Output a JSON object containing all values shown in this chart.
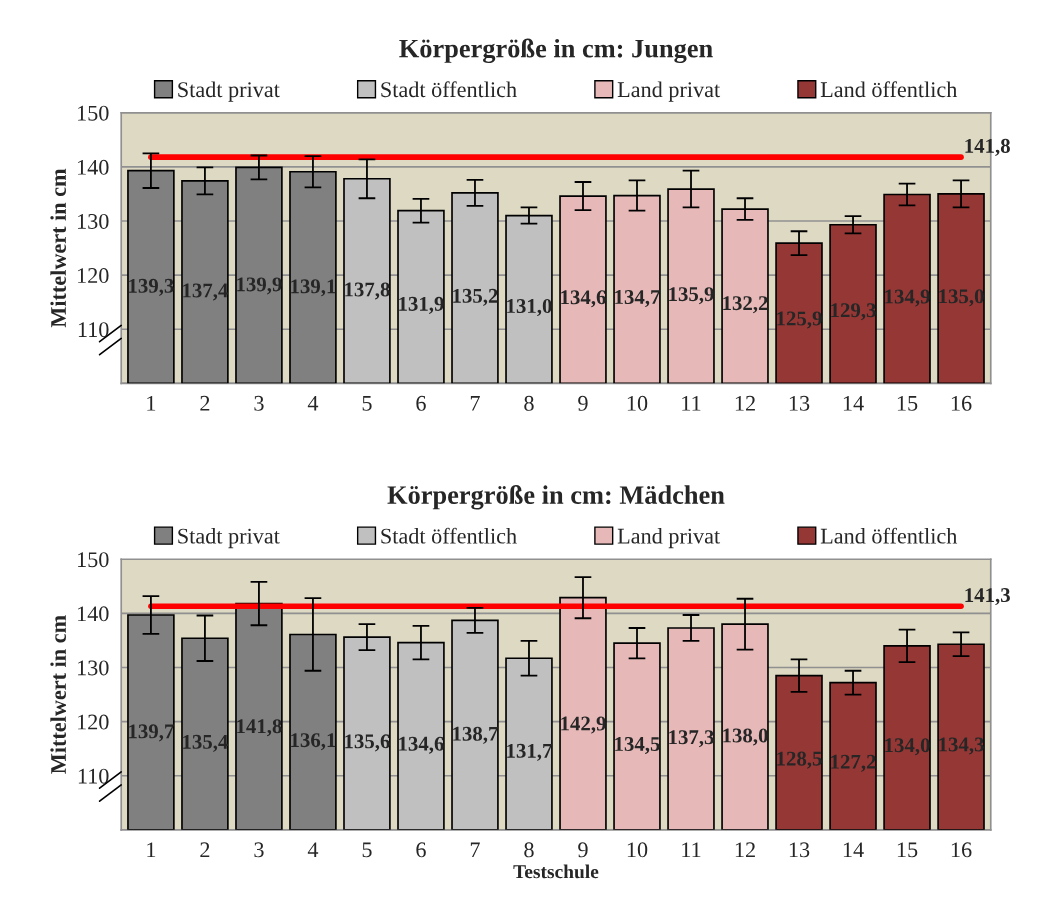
{
  "chart_data": [
    {
      "type": "bar",
      "title": "Körpergröße in cm: Jungen",
      "ylabel": "Mittelwert in cm",
      "categories": [
        "1",
        "2",
        "3",
        "4",
        "5",
        "6",
        "7",
        "8",
        "9",
        "10",
        "11",
        "12",
        "13",
        "14",
        "15",
        "16"
      ],
      "series": [
        {
          "name": "Stadt privat",
          "color": "#808080",
          "values": [
            139.3,
            137.4,
            139.9,
            139.1,
            null,
            null,
            null,
            null,
            null,
            null,
            null,
            null,
            null,
            null,
            null,
            null
          ],
          "errors": [
            3.2,
            2.5,
            2.2,
            2.9,
            null,
            null,
            null,
            null,
            null,
            null,
            null,
            null,
            null,
            null,
            null,
            null
          ],
          "value_labels": [
            "139,3",
            "137,4",
            "139,9",
            "139,1",
            null,
            null,
            null,
            null,
            null,
            null,
            null,
            null,
            null,
            null,
            null,
            null
          ]
        },
        {
          "name": "Stadt öffentlich",
          "color": "#c0c0c0",
          "values": [
            null,
            null,
            null,
            null,
            137.8,
            131.9,
            135.2,
            131.0,
            null,
            null,
            null,
            null,
            null,
            null,
            null,
            null
          ],
          "errors": [
            null,
            null,
            null,
            null,
            3.6,
            2.2,
            2.4,
            1.5,
            null,
            null,
            null,
            null,
            null,
            null,
            null,
            null
          ],
          "value_labels": [
            null,
            null,
            null,
            null,
            "137,8",
            "131,9",
            "135,2",
            "131,0",
            null,
            null,
            null,
            null,
            null,
            null,
            null,
            null
          ]
        },
        {
          "name": "Land privat",
          "color": "#e6b9b8",
          "values": [
            null,
            null,
            null,
            null,
            null,
            null,
            null,
            null,
            134.6,
            134.7,
            135.9,
            132.2,
            null,
            null,
            null,
            null
          ],
          "errors": [
            null,
            null,
            null,
            null,
            null,
            null,
            null,
            null,
            2.6,
            2.8,
            3.4,
            2.0,
            null,
            null,
            null,
            null
          ],
          "value_labels": [
            null,
            null,
            null,
            null,
            null,
            null,
            null,
            null,
            "134,6",
            "134,7",
            "135,9",
            "132,2",
            null,
            null,
            null,
            null
          ]
        },
        {
          "name": "Land öffentlich",
          "color": "#953735",
          "values": [
            null,
            null,
            null,
            null,
            null,
            null,
            null,
            null,
            null,
            null,
            null,
            null,
            125.9,
            129.3,
            134.9,
            135.0
          ],
          "errors": [
            null,
            null,
            null,
            null,
            null,
            null,
            null,
            null,
            null,
            null,
            null,
            null,
            2.2,
            1.6,
            2.0,
            2.5
          ],
          "value_labels": [
            null,
            null,
            null,
            null,
            null,
            null,
            null,
            null,
            null,
            null,
            null,
            null,
            "125,9",
            "129,3",
            "134,9",
            "135,0"
          ]
        }
      ],
      "ylim": [
        100,
        150
      ],
      "yticks": [
        {
          "value": 100,
          "label": null
        },
        110,
        120,
        130,
        140,
        150
      ],
      "ref_lines": [
        {
          "axis": "y",
          "value": 141.8,
          "label": "141,8",
          "color": "#ff0000"
        }
      ],
      "grid": "y",
      "legend": "top"
    },
    {
      "type": "bar",
      "title": "Körpergröße in cm: Mädchen",
      "ylabel": "Mittelwert in cm",
      "xlabel": "Testschule",
      "categories": [
        "1",
        "2",
        "3",
        "4",
        "5",
        "6",
        "7",
        "8",
        "9",
        "10",
        "11",
        "12",
        "13",
        "14",
        "15",
        "16"
      ],
      "series": [
        {
          "name": "Stadt privat",
          "color": "#808080",
          "values": [
            139.7,
            135.4,
            141.8,
            136.1,
            null,
            null,
            null,
            null,
            null,
            null,
            null,
            null,
            null,
            null,
            null,
            null
          ],
          "errors": [
            3.5,
            4.2,
            4.0,
            6.7,
            null,
            null,
            null,
            null,
            null,
            null,
            null,
            null,
            null,
            null,
            null,
            null
          ],
          "value_labels": [
            "139,7",
            "135,4",
            "141,8",
            "136,1",
            null,
            null,
            null,
            null,
            null,
            null,
            null,
            null,
            null,
            null,
            null,
            null
          ]
        },
        {
          "name": "Stadt öffentlich",
          "color": "#c0c0c0",
          "values": [
            null,
            null,
            null,
            null,
            135.6,
            134.6,
            138.7,
            131.7,
            null,
            null,
            null,
            null,
            null,
            null,
            null,
            null
          ],
          "errors": [
            null,
            null,
            null,
            null,
            2.4,
            3.1,
            2.3,
            3.2,
            null,
            null,
            null,
            null,
            null,
            null,
            null,
            null
          ],
          "value_labels": [
            null,
            null,
            null,
            null,
            "135,6",
            "134,6",
            "138,7",
            "131,7",
            null,
            null,
            null,
            null,
            null,
            null,
            null,
            null
          ]
        },
        {
          "name": "Land privat",
          "color": "#e6b9b8",
          "values": [
            null,
            null,
            null,
            null,
            null,
            null,
            null,
            null,
            142.9,
            134.5,
            137.3,
            138.0,
            null,
            null,
            null,
            null
          ],
          "errors": [
            null,
            null,
            null,
            null,
            null,
            null,
            null,
            null,
            3.8,
            2.8,
            2.4,
            4.7,
            null,
            null,
            null,
            null
          ],
          "value_labels": [
            null,
            null,
            null,
            null,
            null,
            null,
            null,
            null,
            "142,9",
            "134,5",
            "137,3",
            "138,0",
            null,
            null,
            null,
            null
          ]
        },
        {
          "name": "Land öffentlich",
          "color": "#953735",
          "values": [
            null,
            null,
            null,
            null,
            null,
            null,
            null,
            null,
            null,
            null,
            null,
            null,
            128.5,
            127.2,
            134.0,
            134.3
          ],
          "errors": [
            null,
            null,
            null,
            null,
            null,
            null,
            null,
            null,
            null,
            null,
            null,
            null,
            3.0,
            2.2,
            3.0,
            2.2
          ],
          "value_labels": [
            null,
            null,
            null,
            null,
            null,
            null,
            null,
            null,
            null,
            null,
            null,
            null,
            "128,5",
            "127,2",
            "134,0",
            "134,3"
          ]
        }
      ],
      "ylim": [
        100,
        150
      ],
      "yticks": [
        {
          "value": 100,
          "label": null
        },
        110,
        120,
        130,
        140,
        150
      ],
      "ref_lines": [
        {
          "axis": "y",
          "value": 141.3,
          "label": "141,3",
          "color": "#ff0000"
        }
      ],
      "grid": "y",
      "legend": "top"
    }
  ]
}
